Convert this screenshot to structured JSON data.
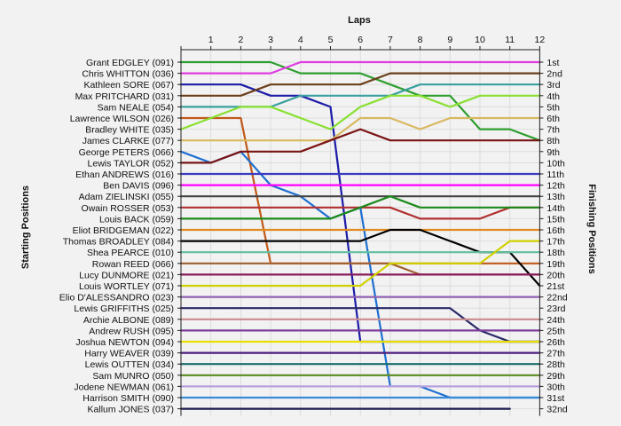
{
  "chart_data": {
    "type": "line",
    "title": "Laps",
    "ylabel_left": "Starting Positions",
    "ylabel_right": "Finishing Positions",
    "laps": [
      0,
      1,
      2,
      3,
      4,
      5,
      6,
      7,
      8,
      9,
      10,
      11,
      12
    ],
    "lap_labels": [
      "1",
      "2",
      "3",
      "4",
      "5",
      "6",
      "7",
      "8",
      "9",
      "10",
      "11",
      "12"
    ],
    "starting_labels": [
      "Grant EDGLEY (091)",
      "Chris WHITTON (036)",
      "Kathleen SORE (067)",
      "Max PRITCHARD (031)",
      "Sam NEALE (054)",
      "Lawrence WILSON (026)",
      "Bradley WHITE (035)",
      "James CLARKE (077)",
      "George PETERS (066)",
      "Lewis TAYLOR (052)",
      "Ethan ANDREWS (016)",
      "Ben DAVIS (096)",
      "Adam ZIELINSKI (055)",
      "Owain ROSSER (053)",
      "Louis BACK (059)",
      "Eliot BRIDGEMAN (022)",
      "Thomas BROADLEY (084)",
      "Shea PEARCE (010)",
      "Rowan REED (066)",
      "Lucy DUNMORE (021)",
      "Louis WORTLEY (071)",
      "Elio D'ALESSANDRO (023)",
      "Lewis GRIFFITHS (025)",
      "Archie ALBONE (089)",
      "Andrew RUSH (095)",
      "Joshua NEWTON (094)",
      "Harry WEAVER (039)",
      "Lewis OUTTEN (034)",
      "Sam MUNRO (050)",
      "Jodene NEWMAN (061)",
      "Harrison SMITH (090)",
      "Kallum JONES (037)"
    ],
    "finishing_labels": [
      "1st",
      "2nd",
      "3rd",
      "4th",
      "5th",
      "6th",
      "7th",
      "8th",
      "9th",
      "10th",
      "11th",
      "12th",
      "13th",
      "14th",
      "15th",
      "16th",
      "17th",
      "18th",
      "19th",
      "20th",
      "21st",
      "22nd",
      "23rd",
      "24th",
      "25th",
      "26th",
      "27th",
      "28th",
      "29th",
      "30th",
      "31st",
      "32nd"
    ],
    "series": [
      {
        "color": "#2e9e2e",
        "positions": [
          1,
          1,
          1,
          1,
          2,
          2,
          2,
          3,
          4,
          4,
          7,
          7,
          8
        ]
      },
      {
        "color": "#e03ce0",
        "positions": [
          2,
          2,
          2,
          2,
          1,
          1,
          1,
          1,
          1,
          1,
          1,
          1,
          1
        ]
      },
      {
        "color": "#1c1ca8",
        "positions": [
          3,
          3,
          3,
          4,
          4,
          5,
          26,
          26,
          26,
          26,
          26,
          26,
          26
        ]
      },
      {
        "color": "#6b3f1a",
        "positions": [
          4,
          4,
          4,
          3,
          3,
          3,
          3,
          2,
          2,
          2,
          2,
          2,
          2
        ]
      },
      {
        "color": "#3aa0a0",
        "positions": [
          5,
          5,
          5,
          5,
          4,
          4,
          4,
          4,
          3,
          3,
          3,
          3,
          3
        ]
      },
      {
        "color": "#c05a1a",
        "positions": [
          6,
          6,
          6,
          19,
          19,
          19,
          19,
          19,
          19,
          19,
          19,
          19,
          19
        ]
      },
      {
        "color": "#88e030",
        "positions": [
          7,
          6,
          5,
          5,
          6,
          7,
          5,
          4,
          4,
          5,
          4,
          4,
          4
        ]
      },
      {
        "color": "#d8b860",
        "positions": [
          8,
          8,
          8,
          8,
          8,
          8,
          6,
          6,
          7,
          6,
          6,
          6,
          6
        ]
      },
      {
        "color": "#1e6fd0",
        "positions": [
          9,
          10,
          9,
          12,
          13,
          15,
          14,
          30,
          30,
          31,
          31,
          31,
          31
        ]
      },
      {
        "color": "#7a1414",
        "positions": [
          10,
          10,
          9,
          9,
          9,
          8,
          7,
          8,
          8,
          8,
          8,
          8,
          8
        ]
      },
      {
        "color": "#3c3cc0",
        "positions": [
          11,
          11,
          11,
          11,
          11,
          11,
          11,
          11,
          11,
          11,
          11,
          11,
          11
        ]
      },
      {
        "color": "#ff00ff",
        "positions": [
          12,
          12,
          12,
          12,
          12,
          12,
          12,
          12,
          12,
          12,
          12,
          12,
          12
        ]
      },
      {
        "color": "#444444",
        "positions": [
          13,
          13,
          13,
          13,
          13,
          13,
          13,
          13,
          13,
          13,
          13,
          13,
          13
        ]
      },
      {
        "color": "#b03030",
        "positions": [
          14,
          14,
          14,
          14,
          14,
          14,
          14,
          14,
          15,
          15,
          15,
          14,
          14
        ]
      },
      {
        "color": "#1c8a1c",
        "positions": [
          15,
          15,
          15,
          15,
          15,
          15,
          14,
          13,
          14,
          14,
          14,
          14,
          14
        ]
      },
      {
        "color": "#e08a20",
        "positions": [
          16,
          16,
          16,
          16,
          16,
          16,
          16,
          16,
          16,
          16,
          16,
          16,
          16
        ]
      },
      {
        "color": "#000000",
        "positions": [
          17,
          17,
          17,
          17,
          17,
          17,
          17,
          16,
          16,
          17,
          18,
          18,
          21
        ]
      },
      {
        "color": "#60c0a0",
        "positions": [
          18,
          18,
          18,
          18,
          18,
          18,
          18,
          18,
          18,
          18,
          18,
          18,
          18
        ]
      },
      {
        "color": "#a06030",
        "positions": [
          19,
          19,
          19,
          19,
          19,
          19,
          19,
          19,
          20,
          20,
          20,
          20,
          20
        ]
      },
      {
        "color": "#8a1a5a",
        "positions": [
          20,
          20,
          20,
          20,
          20,
          20,
          20,
          20,
          20,
          20,
          20,
          20,
          20
        ]
      },
      {
        "color": "#d0d000",
        "positions": [
          21,
          21,
          21,
          21,
          21,
          21,
          21,
          19,
          19,
          19,
          19,
          17,
          17
        ]
      },
      {
        "color": "#9060b0",
        "positions": [
          22,
          22,
          22,
          22,
          22,
          22,
          22,
          22,
          22,
          22,
          22,
          22,
          22
        ]
      },
      {
        "color": "#2a2a6a",
        "positions": [
          23,
          23,
          23,
          23,
          23,
          23,
          23,
          23,
          23,
          23,
          25,
          26,
          26
        ]
      },
      {
        "color": "#c88c8c",
        "positions": [
          24,
          24,
          24,
          24,
          24,
          24,
          24,
          24,
          24,
          24,
          24,
          24,
          24
        ]
      },
      {
        "color": "#7c3c9c",
        "positions": [
          25,
          25,
          25,
          25,
          25,
          25,
          25,
          25,
          25,
          25,
          25,
          25,
          25
        ]
      },
      {
        "color": "#e8e000",
        "positions": [
          26,
          26,
          26,
          26,
          26,
          26,
          26,
          26,
          26,
          26,
          26,
          26,
          26
        ]
      },
      {
        "color": "#4c1c7c",
        "positions": [
          27,
          27,
          27,
          27,
          27,
          27,
          27,
          27,
          27,
          27,
          27,
          27,
          27
        ]
      },
      {
        "color": "#1c6c6c",
        "positions": [
          28,
          28,
          28,
          28,
          28,
          28,
          28,
          28,
          28,
          28,
          28,
          28,
          28
        ]
      },
      {
        "color": "#5a8a20",
        "positions": [
          29,
          29,
          29,
          29,
          29,
          29,
          29,
          29,
          29,
          29,
          29,
          29,
          29
        ]
      },
      {
        "color": "#b8a0e0",
        "positions": [
          30,
          30,
          30,
          30,
          30,
          30,
          30,
          30,
          30,
          30,
          30,
          30,
          30
        ]
      },
      {
        "color": "#3a8ad8",
        "positions": [
          31,
          31,
          31,
          31,
          31,
          31,
          31,
          31,
          31,
          31,
          31,
          31,
          31
        ]
      },
      {
        "color": "#1a1a4a",
        "positions": [
          32,
          32,
          32,
          32,
          32,
          32,
          32,
          32,
          32,
          32,
          32,
          32,
          null
        ]
      }
    ]
  }
}
